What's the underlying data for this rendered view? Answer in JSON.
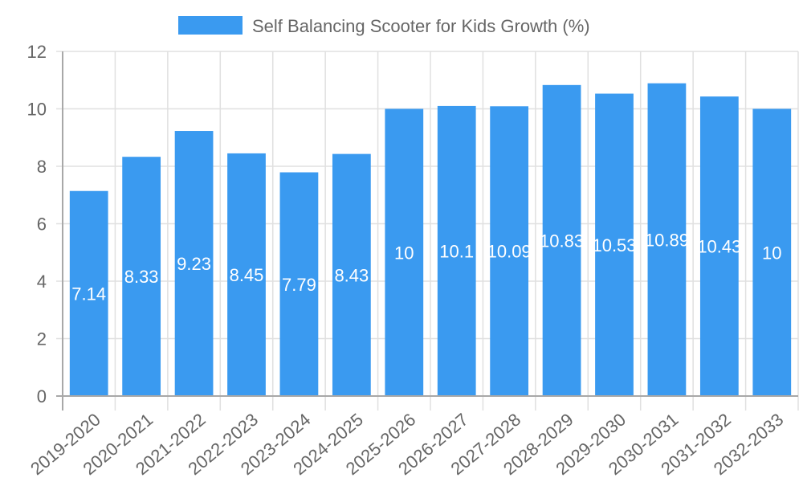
{
  "chart_data": {
    "type": "bar",
    "title": "",
    "legend": [
      {
        "label": "Self Balancing Scooter for Kids Growth (%)",
        "color": "#3a9af0"
      }
    ],
    "legend_position": "top",
    "categories": [
      "2019-2020",
      "2020-2021",
      "2021-2022",
      "2022-2023",
      "2023-2024",
      "2024-2025",
      "2025-2026",
      "2026-2027",
      "2027-2028",
      "2028-2029",
      "2029-2030",
      "2030-2031",
      "2031-2032",
      "2032-2033"
    ],
    "series": [
      {
        "name": "Self Balancing Scooter for Kids Growth (%)",
        "values": [
          7.14,
          8.33,
          9.23,
          8.45,
          7.79,
          8.43,
          10,
          10.1,
          10.09,
          10.83,
          10.53,
          10.89,
          10.43,
          10
        ]
      }
    ],
    "data_labels": [
      "7.14",
      "8.33",
      "9.23",
      "8.45",
      "7.79",
      "8.43",
      "10",
      "10.1",
      "10.09",
      "10.83",
      "10.53",
      "10.89",
      "10.43",
      "10"
    ],
    "xlabel": "",
    "ylabel": "",
    "ylim": [
      0,
      12
    ],
    "yticks": [
      0,
      2,
      4,
      6,
      8,
      10,
      12
    ],
    "grid": true
  }
}
